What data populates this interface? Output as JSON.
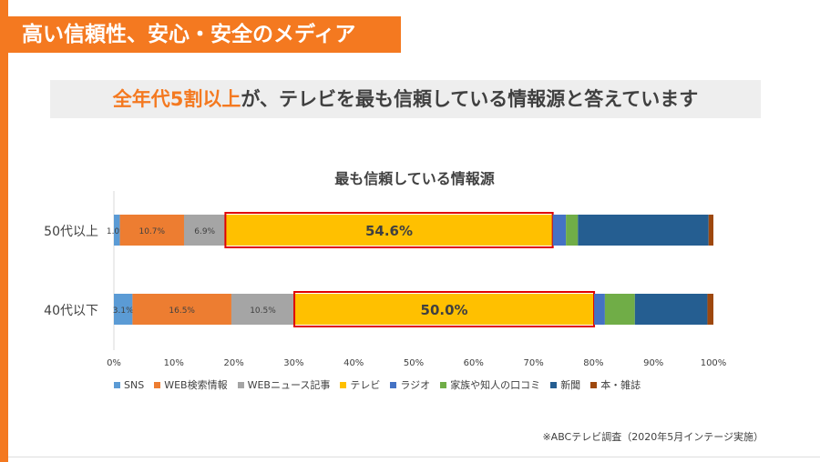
{
  "header": {
    "title": "高い信頼性、安心・安全のメディア"
  },
  "subtitle": {
    "highlight": "全年代5割以上",
    "rest": "が、テレビを最も信頼している情報源と答えています"
  },
  "source_note": "※ABCテレビ調査（2020年5月インテージ実施）",
  "colors": {
    "accent": "#f47920",
    "highlight_border": "#e00000",
    "series": [
      "#5b9bd5",
      "#ed7d31",
      "#a5a5a5",
      "#ffc000",
      "#4472c4",
      "#70ad47",
      "#255e91",
      "#9e480e"
    ]
  },
  "chart_data": {
    "type": "bar",
    "orientation": "horizontal",
    "stacked": true,
    "title": "最も信頼している情報源",
    "categories": [
      "50代以上",
      "40代以下"
    ],
    "series": [
      {
        "name": "SNS",
        "values": [
          1.0,
          3.1
        ]
      },
      {
        "name": "WEB検索情報",
        "values": [
          10.7,
          16.5
        ]
      },
      {
        "name": "WEBニュース記事",
        "values": [
          6.9,
          10.5
        ]
      },
      {
        "name": "テレビ",
        "values": [
          54.6,
          50.0
        ]
      },
      {
        "name": "ラジオ",
        "values": [
          2.2,
          1.8
        ]
      },
      {
        "name": "家族や知人の口コミ",
        "values": [
          2.0,
          5.0
        ]
      },
      {
        "name": "新聞",
        "values": [
          21.8,
          12.1
        ]
      },
      {
        "name": "本・雑誌",
        "values": [
          0.8,
          1.0
        ]
      }
    ],
    "data_labels": [
      [
        "1.0%",
        "10.7%",
        "6.9%",
        "54.6%",
        "",
        "",
        "",
        ""
      ],
      [
        "3.1%",
        "16.5%",
        "10.5%",
        "50.0%",
        "",
        "",
        "",
        ""
      ]
    ],
    "highlight_series": "テレビ",
    "x_ticks": [
      "0%",
      "10%",
      "20%",
      "30%",
      "40%",
      "50%",
      "60%",
      "70%",
      "80%",
      "90%",
      "100%"
    ],
    "xlim": [
      0,
      100
    ],
    "legend_position": "bottom"
  }
}
